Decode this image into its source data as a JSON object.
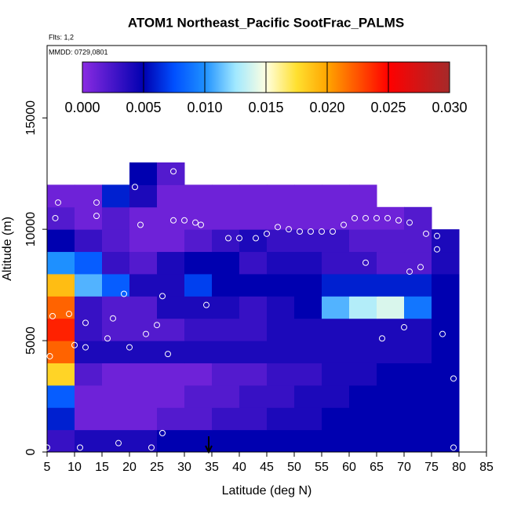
{
  "chart_data": {
    "type": "heatmap",
    "title": "ATOM1 Northeast_Pacific SootFrac_PALMS",
    "flights": "Flts: 1,2",
    "dates": "MMDD: 0729,0801",
    "xlabel": "Latitude (deg N)",
    "ylabel": "Altitude (m)",
    "xlim": [
      5,
      85
    ],
    "ylim": [
      0,
      18250
    ],
    "xticks": [
      5,
      10,
      15,
      20,
      25,
      30,
      35,
      40,
      45,
      50,
      55,
      60,
      65,
      70,
      75,
      80,
      85
    ],
    "yticks": [
      0,
      5000,
      10000,
      15000
    ],
    "x_edges": [
      5,
      10,
      15,
      20,
      25,
      30,
      35,
      40,
      45,
      50,
      55,
      60,
      65,
      70,
      75,
      80
    ],
    "y_edges": [
      0,
      1000,
      2000,
      3000,
      4000,
      5000,
      6000,
      7000,
      8000,
      9000,
      10000,
      11000,
      12000,
      13000
    ],
    "z": [
      [
        0.003,
        0.004,
        0.004,
        0.004,
        0.005,
        0.005,
        0.005,
        0.005,
        0.005,
        0.005,
        0.005,
        0.005,
        0.005,
        0.005,
        0.005
      ],
      [
        0.006,
        0.001,
        0.001,
        0.001,
        0.002,
        0.002,
        0.003,
        0.003,
        0.004,
        0.004,
        0.005,
        0.005,
        0.005,
        0.005,
        0.005
      ],
      [
        0.008,
        0.001,
        0.001,
        0.001,
        0.001,
        0.002,
        0.002,
        0.003,
        0.003,
        0.004,
        0.004,
        0.005,
        0.005,
        0.005,
        0.005
      ],
      [
        0.018,
        0.002,
        0.001,
        0.001,
        0.001,
        0.001,
        0.002,
        0.002,
        0.003,
        0.003,
        0.004,
        0.004,
        0.005,
        0.005,
        0.005
      ],
      [
        0.022,
        0.004,
        0.004,
        0.004,
        0.004,
        0.004,
        0.004,
        0.004,
        0.004,
        0.004,
        0.004,
        0.004,
        0.004,
        0.004,
        0.005
      ],
      [
        0.024,
        0.003,
        0.002,
        0.002,
        0.002,
        0.003,
        0.003,
        0.003,
        0.004,
        0.004,
        0.004,
        0.004,
        0.004,
        0.004,
        0.005
      ],
      [
        0.022,
        0.003,
        0.002,
        0.002,
        0.004,
        0.004,
        0.004,
        0.003,
        0.004,
        0.005,
        0.011,
        0.013,
        0.014,
        0.009,
        0.005
      ],
      [
        0.019,
        0.011,
        0.008,
        0.004,
        0.004,
        0.007,
        0.005,
        0.005,
        0.005,
        0.005,
        0.006,
        0.006,
        0.006,
        0.006,
        0.005
      ],
      [
        0.01,
        0.008,
        0.003,
        0.002,
        0.004,
        0.005,
        0.005,
        0.003,
        0.004,
        0.004,
        0.003,
        0.003,
        0.002,
        0.002,
        0.004
      ],
      [
        0.005,
        0.003,
        0.002,
        0.001,
        0.001,
        0.002,
        0.003,
        0.004,
        0.003,
        0.003,
        0.003,
        0.002,
        0.002,
        0.002,
        0.004
      ],
      [
        0.002,
        0.001,
        0.002,
        0.001,
        0.001,
        0.001,
        0.001,
        0.001,
        0.001,
        0.001,
        0.001,
        0.001,
        0.001,
        0.002,
        null
      ],
      [
        0.001,
        0.001,
        0.006,
        0.004,
        0.001,
        0.001,
        0.001,
        0.001,
        0.001,
        0.001,
        0.001,
        0.001,
        null,
        null,
        null
      ],
      [
        null,
        null,
        null,
        0.005,
        0.002,
        null,
        null,
        null,
        null,
        null,
        null,
        null,
        null,
        null,
        null
      ]
    ],
    "colorscale": [
      [
        0,
        "#8a2be2"
      ],
      [
        0.005,
        "#0000b0"
      ],
      [
        0.0075,
        "#0050ff"
      ],
      [
        0.01,
        "#1e90ff"
      ],
      [
        0.0125,
        "#a0e8ff"
      ],
      [
        0.015,
        "#ffffe0"
      ],
      [
        0.0175,
        "#ffe030"
      ],
      [
        0.02,
        "#ffa500"
      ],
      [
        0.025,
        "#ff0000"
      ],
      [
        0.03,
        "#a52a2a"
      ]
    ],
    "clim": [
      0,
      0.03
    ],
    "cticks": [
      {
        "value": 0,
        "label": "0.000"
      },
      {
        "value": 0.005,
        "label": "0.005"
      },
      {
        "value": 0.01,
        "label": "0.010"
      },
      {
        "value": 0.015,
        "label": "0.015"
      },
      {
        "value": 0.02,
        "label": "0.020"
      },
      {
        "value": 0.025,
        "label": "0.025"
      },
      {
        "value": 0.03,
        "label": "0.030"
      }
    ],
    "samples": {
      "x": [
        5,
        11,
        18,
        24,
        26,
        79,
        5.5,
        10,
        12,
        20,
        27,
        6,
        9,
        12,
        17,
        16,
        23,
        25,
        19,
        26,
        34,
        66,
        70,
        77,
        79,
        73,
        71,
        63,
        6.5,
        7,
        14,
        14,
        21,
        22,
        28,
        30,
        32,
        33,
        28,
        31,
        38,
        40,
        43,
        45,
        47,
        49,
        51,
        53,
        55,
        57,
        59,
        61,
        63,
        65,
        67,
        69,
        71,
        74,
        76,
        67,
        76
      ],
      "y": [
        200,
        200,
        400,
        200,
        850,
        200,
        4300,
        4800,
        4700,
        4700,
        4400,
        6100,
        6200,
        5800,
        6000,
        5100,
        5300,
        5700,
        7100,
        7000,
        6600,
        5100,
        5600,
        5300,
        3300,
        8300,
        8100,
        8500,
        10500,
        11200,
        11200,
        10600,
        11900,
        10200,
        10400,
        10400,
        10300,
        10200,
        12600,
        12600,
        9600,
        9600,
        9600,
        9800,
        10100,
        10000,
        9900,
        9900,
        9900,
        9900,
        10200,
        10500,
        10500,
        10500,
        10500,
        10400,
        10300,
        9800,
        9700,
        11300,
        9100
      ]
    }
  }
}
